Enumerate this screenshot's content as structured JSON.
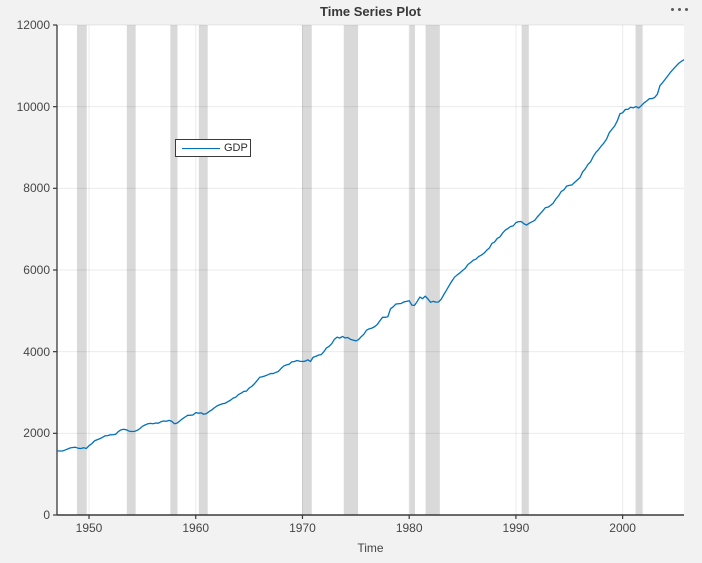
{
  "figure": {
    "title": "Time Series Plot",
    "toolbar": {
      "icon": "ellipsis-icon",
      "tooltip": ""
    }
  },
  "legend": {
    "entries": [
      {
        "label": "GDP",
        "color": "#0072BD"
      }
    ]
  },
  "colors": {
    "figure_background": "#f2f2f2",
    "plot_background": "#ffffff",
    "axis": "#3a3a3a",
    "tick_text": "#464646",
    "grid": "rgba(0,0,0,0.08)",
    "recession_band": "#d9d9d9",
    "series_line": "#0072BD",
    "title_text": "#383838"
  },
  "chart_data": {
    "type": "line",
    "title": "Time Series Plot",
    "xlabel": "Time",
    "ylabel": "",
    "grid": true,
    "legend_position": "inside-upper-left",
    "xlim": [
      1947,
      2005.75
    ],
    "ylim": [
      0,
      12000
    ],
    "x_ticks": [
      1950,
      1960,
      1970,
      1980,
      1990,
      2000
    ],
    "y_ticks": [
      0,
      2000,
      4000,
      6000,
      8000,
      10000,
      12000
    ],
    "x_start": 1947.0,
    "x_step": 0.25,
    "recession_bands": [
      [
        1948.87,
        1949.79
      ],
      [
        1953.54,
        1954.37
      ],
      [
        1957.62,
        1958.29
      ],
      [
        1960.29,
        1961.12
      ],
      [
        1969.96,
        1970.87
      ],
      [
        1973.87,
        1975.21
      ],
      [
        1980.04,
        1980.54
      ],
      [
        1981.54,
        1982.87
      ],
      [
        1990.54,
        1991.21
      ],
      [
        2001.21,
        2001.87
      ]
    ],
    "series": [
      {
        "name": "GDP",
        "color": "#0072BD",
        "values": [
          1570,
          1568,
          1568,
          1590,
          1616,
          1644,
          1654,
          1658,
          1633,
          1628,
          1646,
          1629,
          1697,
          1745,
          1812,
          1843,
          1867,
          1900,
          1939,
          1944,
          1964,
          1966,
          1978,
          2044,
          2085,
          2099,
          2086,
          2055,
          2045,
          2048,
          2071,
          2112,
          2172,
          2204,
          2233,
          2245,
          2235,
          2253,
          2249,
          2286,
          2301,
          2296,
          2318,
          2295,
          2236,
          2250,
          2302,
          2356,
          2400,
          2442,
          2442,
          2451,
          2506,
          2493,
          2501,
          2467,
          2484,
          2532,
          2573,
          2626,
          2673,
          2700,
          2724,
          2735,
          2775,
          2810,
          2863,
          2885,
          2950,
          2984,
          3026,
          3033,
          3108,
          3150,
          3214,
          3292,
          3373,
          3385,
          3407,
          3433,
          3464,
          3464,
          3491,
          3518,
          3590,
          3651,
          3676,
          3692,
          3750,
          3760,
          3784,
          3766,
          3760,
          3767,
          3800,
          3759,
          3864,
          3885,
          3916,
          3927,
          3997,
          4092,
          4131,
          4199,
          4305,
          4355,
          4332,
          4373,
          4335,
          4347,
          4302,
          4284,
          4263,
          4293,
          4366,
          4425,
          4526,
          4559,
          4577,
          4610,
          4663,
          4755,
          4841,
          4841,
          4855,
          5050,
          5098,
          5166,
          5173,
          5180,
          5218,
          5232,
          5248,
          5139,
          5133,
          5230,
          5338,
          5298,
          5360,
          5293,
          5209,
          5233,
          5213,
          5217,
          5284,
          5400,
          5508,
          5623,
          5728,
          5824,
          5879,
          5928,
          5988,
          6040,
          6135,
          6181,
          6239,
          6265,
          6329,
          6363,
          6410,
          6480,
          6535,
          6650,
          6685,
          6773,
          6810,
          6904,
          6974,
          7017,
          7066,
          7081,
          7160,
          7184,
          7188,
          7133,
          7100,
          7147,
          7180,
          7213,
          7298,
          7369,
          7444,
          7525,
          7539,
          7583,
          7639,
          7742,
          7816,
          7925,
          7963,
          8053,
          8073,
          8083,
          8146,
          8204,
          8262,
          8401,
          8478,
          8585,
          8651,
          8781,
          8881,
          8950,
          9037,
          9113,
          9208,
          9363,
          9447,
          9526,
          9653,
          9827,
          9850,
          9932,
          9933,
          9985,
          9971,
          10002,
          9967,
          10024,
          10091,
          10139,
          10195,
          10197,
          10225,
          10302,
          10516,
          10591,
          10675,
          10760,
          10848,
          10920,
          10990,
          11060,
          11110,
          11150
        ]
      }
    ]
  }
}
